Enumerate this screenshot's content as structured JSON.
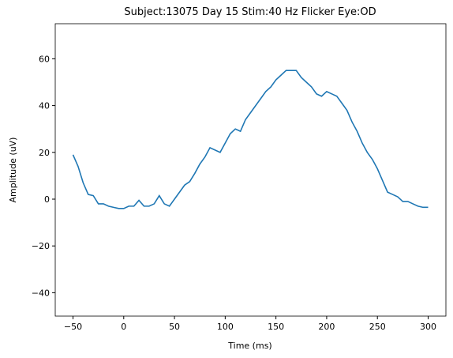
{
  "chart_data": {
    "type": "line",
    "title": "Subject:13075 Day 15 Stim:40 Hz Flicker Eye:OD",
    "xlabel": "Time (ms)",
    "ylabel": "Amplitude (uV)",
    "color": "#1f77b4",
    "x": [
      -50,
      -45,
      -40,
      -35,
      -30,
      -25,
      -20,
      -15,
      -10,
      -5,
      0,
      5,
      10,
      15,
      20,
      25,
      30,
      35,
      40,
      45,
      50,
      55,
      60,
      65,
      70,
      75,
      80,
      85,
      90,
      95,
      100,
      105,
      110,
      115,
      120,
      125,
      130,
      135,
      140,
      145,
      150,
      155,
      160,
      165,
      170,
      175,
      180,
      185,
      190,
      195,
      200,
      205,
      210,
      215,
      220,
      225,
      230,
      235,
      240,
      245,
      250,
      255,
      260,
      265,
      270,
      275,
      280,
      285,
      290,
      295,
      300
    ],
    "values": [
      19,
      14,
      7,
      2,
      1.5,
      -2,
      -2,
      -3,
      -3.5,
      -4,
      -4,
      -3,
      -3,
      -0.5,
      -3,
      -3,
      -2,
      1.5,
      -2,
      -3,
      0,
      3,
      6,
      7.5,
      11,
      15,
      18,
      22,
      21,
      20,
      24,
      28,
      30,
      29,
      34,
      37,
      40,
      43,
      46,
      48,
      51,
      53,
      55,
      55,
      55,
      52,
      50,
      48,
      45,
      44,
      46,
      45,
      44,
      41,
      38,
      33,
      29,
      24,
      20,
      17,
      13,
      8,
      3,
      2,
      1,
      -1,
      -1,
      -2,
      -3,
      -3.5,
      -3.5
    ],
    "xlim": [
      -67.5,
      317.5
    ],
    "ylim": [
      -50,
      75
    ],
    "xticks": [
      {
        "value": -50,
        "label": "−50"
      },
      0,
      50,
      100,
      150,
      200,
      250,
      300
    ],
    "yticks": [
      {
        "value": -40,
        "label": "−40"
      },
      {
        "value": -20,
        "label": "−20"
      },
      0,
      20,
      40,
      60
    ]
  }
}
